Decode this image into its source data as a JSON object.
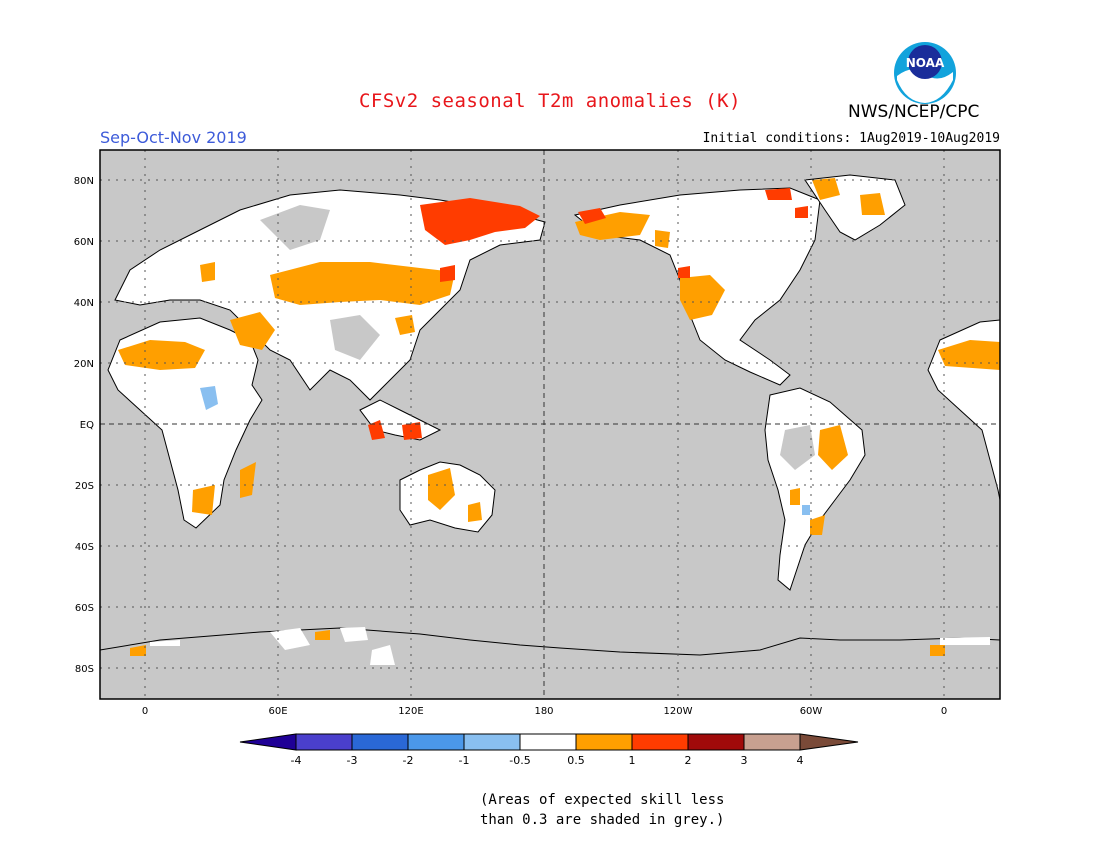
{
  "title": "CFSv2 seasonal T2m anomalies (K)",
  "agency": "NWS/NCEP/CPC",
  "logo_text": "NOAA",
  "season": "Sep-Oct-Nov 2019",
  "initial_conditions": "Initial conditions: 1Aug2019-10Aug2019",
  "note": [
    "(Areas of expected skill less",
    "than 0.3 are shaded in grey.)"
  ],
  "map": {
    "lat_labels": [
      "80N",
      "60N",
      "40N",
      "20N",
      "EQ",
      "20S",
      "40S",
      "60S",
      "80S"
    ],
    "lon_labels": [
      "0",
      "60E",
      "120E",
      "180",
      "120W",
      "60W",
      "0"
    ],
    "ocean_color": "#c8c8c8",
    "coast_color": "#000000"
  },
  "colorbar": {
    "ticks": [
      "-4",
      "-3",
      "-2",
      "-1",
      "-0.5",
      "0.5",
      "1",
      "2",
      "3",
      "4"
    ],
    "colors": [
      "#1f0096",
      "#4a3fcc",
      "#2a68d6",
      "#4b98ea",
      "#89bff0",
      "#ffffff",
      "#ff9f00",
      "#ff3c00",
      "#a00a0a",
      "#c8a090",
      "#7a4a38"
    ]
  }
}
